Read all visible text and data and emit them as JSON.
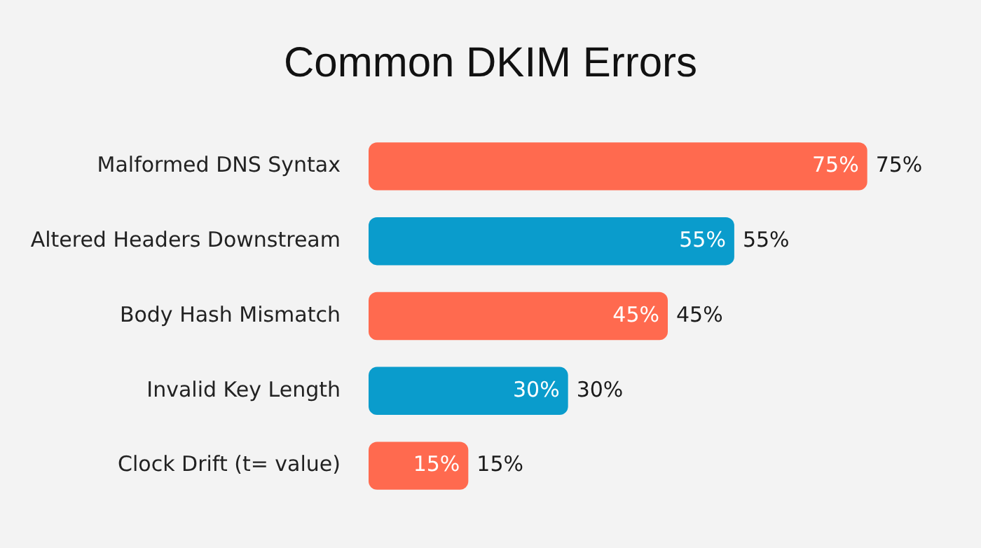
{
  "chart_data": {
    "type": "bar",
    "orientation": "horizontal",
    "title": "Common DKIM Errors",
    "categories": [
      "Malformed DNS Syntax",
      "Altered Headers Downstream",
      "Body Hash Mismatch",
      "Invalid Key Length",
      "Clock Drift (t= value)"
    ],
    "values": [
      75,
      55,
      45,
      30,
      15
    ],
    "colors": [
      "#ff6a4f",
      "#0a9ccc",
      "#ff6a4f",
      "#0a9ccc",
      "#ff6a4f"
    ],
    "value_labels": [
      "75%",
      "55%",
      "45%",
      "30%",
      "15%"
    ],
    "legend": false
  }
}
